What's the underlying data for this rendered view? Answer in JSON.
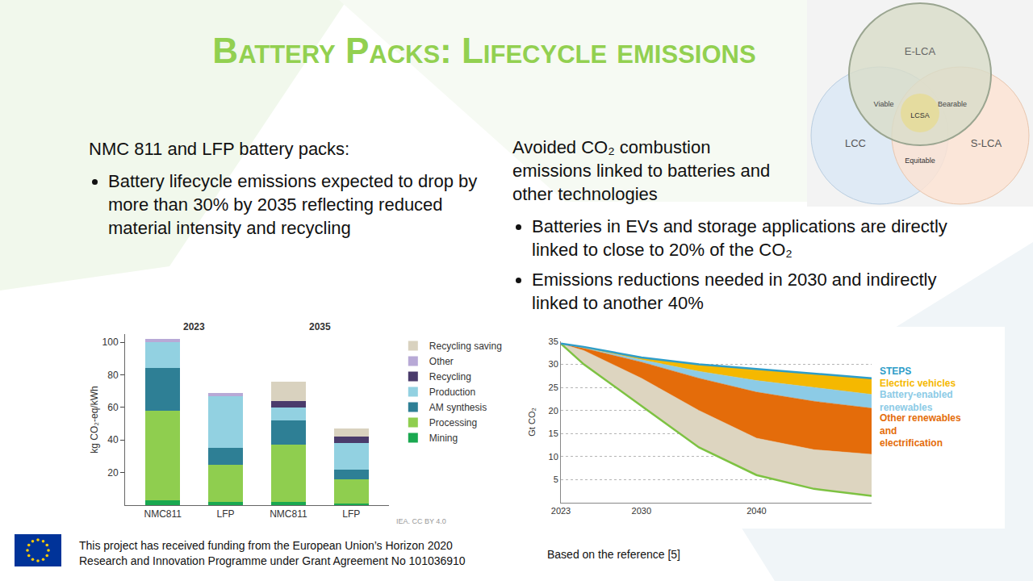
{
  "slide": {
    "title": "Battery Packs: Lifecycle emissions",
    "left": {
      "heading": "NMC 811 and LFP battery packs:",
      "bullets": [
        "Battery lifecycle emissions expected to drop by more than 30% by 2035 reflecting reduced material intensity and recycling"
      ]
    },
    "right": {
      "heading": "Avoided CO₂ combustion emissions linked to batteries and other technologies",
      "bullets": [
        "Batteries in EVs and storage applications are directly linked to close to 20% of the CO₂",
        "Emissions reductions needed in 2030 and indirectly linked to another 40%"
      ]
    },
    "diagram": {
      "labels": [
        "E-LCA",
        "LCC",
        "S-LCA",
        "Viable",
        "Bearable",
        "Equitable",
        "LCSA"
      ]
    },
    "footer": {
      "funding": [
        "This project has received funding from the European Union’s Horizon 2020",
        "Research and Innovation Programme under Grant Agreement No 101036910"
      ],
      "reference": "Based on the reference [5]"
    }
  },
  "chart_data": [
    {
      "type": "bar",
      "stacked": true,
      "legend": "right",
      "grid": false,
      "categories": [
        "NMC811",
        "LFP",
        "NMC811",
        "LFP"
      ],
      "groups": [
        "2023",
        "2023",
        "2035",
        "2035"
      ],
      "ylabel": "kg CO₂-eq/kWh",
      "ylim": [
        0,
        105
      ],
      "yticks": [
        20,
        40,
        60,
        80,
        100
      ],
      "source": "IEA. CC BY 4.0",
      "series": [
        {
          "name": "Mining",
          "color": "#1aa850",
          "values": [
            3,
            2,
            2,
            1
          ]
        },
        {
          "name": "Processing",
          "color": "#8fce4f",
          "values": [
            55,
            23,
            35,
            15
          ]
        },
        {
          "name": "AM synthesis",
          "color": "#2e7f95",
          "values": [
            26,
            10,
            15,
            6
          ]
        },
        {
          "name": "Production",
          "color": "#92d1e1",
          "values": [
            16,
            32,
            8,
            16
          ]
        },
        {
          "name": "Recycling",
          "color": "#4a3b6b",
          "values": [
            0,
            0,
            4,
            4
          ]
        },
        {
          "name": "Other",
          "color": "#b8a9d6",
          "values": [
            2,
            2,
            0,
            0
          ]
        },
        {
          "name": "Recycling saving",
          "color": "#d9d2bf",
          "values": [
            0,
            0,
            12,
            5
          ]
        }
      ]
    },
    {
      "type": "area",
      "stacked": true,
      "grid": true,
      "x": [
        2023,
        2025,
        2030,
        2035,
        2040,
        2045,
        2050
      ],
      "xlim": [
        2023,
        2050
      ],
      "xticks": [
        2023,
        2030,
        2040
      ],
      "ylabel": "Gt CO₂",
      "ylim": [
        0,
        35
      ],
      "yticks": [
        5,
        10,
        15,
        20,
        25,
        30,
        35
      ],
      "annotations": [
        {
          "text": "STEPS",
          "color": "#2e9dc8"
        }
      ],
      "series": [
        {
          "type": "line",
          "color": "#7dc242",
          "values": [
            34.5,
            30,
            21,
            12,
            6,
            3,
            1.5
          ]
        },
        {
          "type": "area",
          "color": "#ddd5c0",
          "values": [
            0,
            3,
            6,
            8,
            8,
            8.5,
            9
          ]
        },
        {
          "type": "area",
          "name": "Other renewables and electrification",
          "color": "#e46c0a",
          "values": [
            0,
            0.5,
            3.5,
            7,
            10,
            10.5,
            10
          ]
        },
        {
          "type": "area",
          "name": "Battery-enabled renewables",
          "color": "#8ccbe6",
          "values": [
            0,
            0.1,
            0.5,
            1.5,
            2.5,
            3,
            3
          ]
        },
        {
          "type": "area",
          "name": "Electric vehicles",
          "color": "#f5b800",
          "values": [
            0,
            0.2,
            0.5,
            1.5,
            2.5,
            3,
            3.5
          ]
        }
      ]
    }
  ]
}
